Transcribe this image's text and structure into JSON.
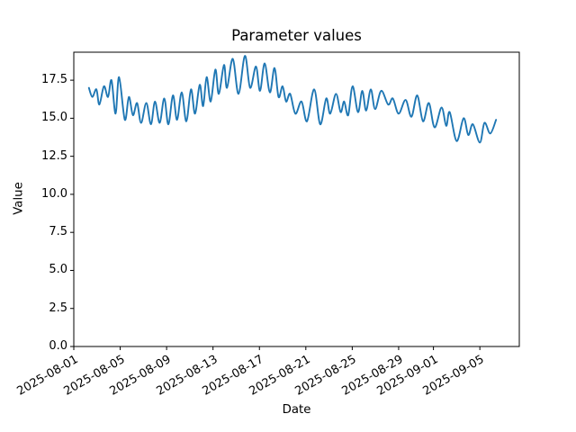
{
  "chart_data": {
    "type": "line",
    "title": "Parameter values",
    "xlabel": "Date",
    "ylabel": "Value",
    "grid": false,
    "legend": null,
    "line_color": "#1f77b4",
    "axis_color": "#000000",
    "background_color": "#ffffff",
    "x_unit": "days since 2025-08-01T00:00",
    "xlim_days": [
      0,
      38.4
    ],
    "ylim": [
      0,
      19.34
    ],
    "x_ticks": {
      "positions_days": [
        0,
        4,
        8,
        12,
        16,
        20,
        24,
        28,
        31,
        35
      ],
      "labels": [
        "2025-08-01",
        "2025-08-05",
        "2025-08-09",
        "2025-08-13",
        "2025-08-17",
        "2025-08-21",
        "2025-08-25",
        "2025-08-29",
        "2025-09-01",
        "2025-09-05"
      ]
    },
    "y_ticks": {
      "positions": [
        0,
        2.5,
        5,
        7.5,
        10,
        12.5,
        15,
        17.5
      ],
      "labels": [
        "0.0",
        "2.5",
        "5.0",
        "7.5",
        "10.0",
        "12.5",
        "15.0",
        "17.5"
      ]
    },
    "x": [
      1.3,
      1.6,
      1.95,
      2.2,
      2.6,
      2.95,
      3.25,
      3.6,
      3.9,
      4.4,
      4.75,
      5.1,
      5.45,
      5.8,
      6.25,
      6.65,
      7.0,
      7.4,
      7.8,
      8.15,
      8.55,
      8.9,
      9.3,
      9.7,
      10.1,
      10.45,
      10.85,
      11.15,
      11.45,
      11.8,
      12.2,
      12.5,
      12.95,
      13.2,
      13.7,
      14.2,
      14.75,
      15.2,
      15.7,
      16.05,
      16.45,
      16.9,
      17.3,
      17.65,
      18.0,
      18.3,
      18.65,
      19.1,
      19.63,
      20.1,
      20.72,
      21.24,
      21.76,
      22.1,
      22.6,
      23.0,
      23.3,
      23.65,
      24.03,
      24.5,
      24.86,
      25.2,
      25.6,
      25.97,
      26.5,
      27.1,
      27.5,
      28.0,
      28.6,
      29.1,
      29.6,
      30.1,
      30.6,
      31.1,
      31.7,
      32.1,
      32.4,
      33.0,
      33.6,
      34.0,
      34.4,
      35.0,
      35.4,
      35.9,
      36.4
    ],
    "y": [
      17.0,
      16.4,
      16.9,
      15.9,
      17.1,
      16.4,
      17.5,
      15.3,
      17.7,
      14.9,
      16.4,
      15.2,
      16.0,
      14.7,
      16.0,
      14.6,
      16.1,
      14.7,
      16.3,
      14.6,
      16.5,
      14.9,
      16.7,
      14.8,
      16.9,
      15.3,
      17.2,
      15.8,
      17.7,
      16.1,
      18.2,
      16.6,
      18.5,
      17.0,
      18.9,
      16.6,
      19.1,
      17.0,
      18.4,
      16.8,
      18.6,
      16.7,
      18.3,
      16.4,
      17.1,
      16.1,
      16.6,
      15.3,
      16.1,
      14.8,
      16.9,
      14.6,
      16.3,
      15.3,
      16.6,
      15.4,
      16.1,
      15.2,
      17.1,
      15.4,
      16.8,
      15.5,
      16.9,
      15.6,
      16.8,
      15.9,
      16.3,
      15.3,
      16.2,
      15.1,
      16.5,
      14.8,
      16.0,
      14.4,
      15.7,
      14.5,
      15.4,
      13.5,
      15.0,
      13.9,
      14.6,
      13.4,
      14.7,
      14.0,
      14.9
    ]
  }
}
